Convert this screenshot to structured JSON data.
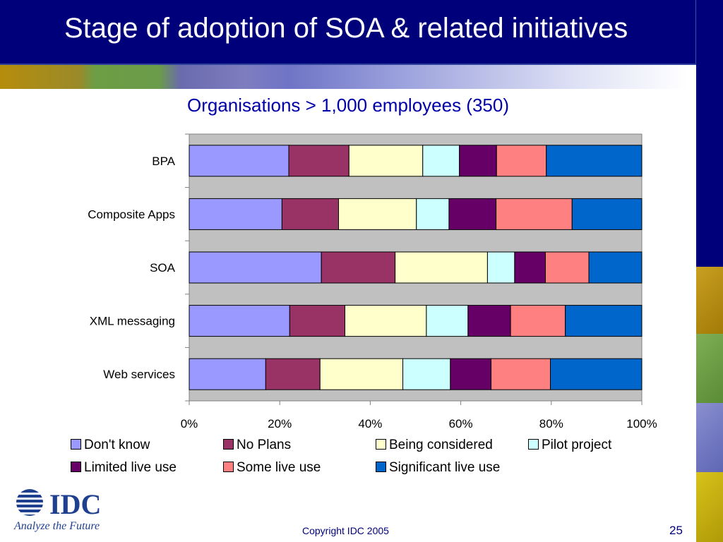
{
  "slide": {
    "title": "Stage of adoption of SOA & related initiatives",
    "copyright": "Copyright IDC 2005",
    "page_number": "25",
    "logo": {
      "brand_text": "IDC",
      "tagline": "Analyze the Future"
    }
  },
  "colors": {
    "header_bg": "#00007a",
    "subtitle": "#0000a8",
    "plot_bg": "#c0c0c0"
  },
  "chart_data": {
    "type": "bar",
    "orientation": "horizontal",
    "stacked": "percent",
    "title": "Organisations > 1,000 employees (350)",
    "categories": [
      "BPA",
      "Composite Apps",
      "SOA",
      "XML messaging",
      "Web services"
    ],
    "xlim": [
      0,
      100
    ],
    "x_ticks": [
      "0%",
      "20%",
      "40%",
      "60%",
      "80%",
      "100%"
    ],
    "grid": false,
    "legend_position": "bottom",
    "series": [
      {
        "name": "Don't know",
        "color": "#9999ff",
        "values": [
          22.0,
          20.5,
          29.2,
          22.2,
          16.9
        ]
      },
      {
        "name": "No Plans",
        "color": "#993366",
        "values": [
          13.3,
          12.5,
          16.3,
          12.2,
          12.0
        ]
      },
      {
        "name": "Being considered",
        "color": "#ffffcc",
        "values": [
          16.3,
          17.2,
          20.4,
          18.0,
          18.3
        ]
      },
      {
        "name": "Pilot project",
        "color": "#ccffff",
        "values": [
          8.1,
          7.2,
          6.0,
          9.2,
          10.5
        ]
      },
      {
        "name": "Limited live use",
        "color": "#660066",
        "values": [
          8.2,
          10.4,
          6.8,
          9.4,
          9.0
        ]
      },
      {
        "name": "Some live use",
        "color": "#ff8080",
        "values": [
          11.0,
          16.8,
          9.6,
          12.1,
          13.1
        ]
      },
      {
        "name": "Significant live use",
        "color": "#0066cc",
        "values": [
          21.1,
          15.4,
          11.7,
          16.9,
          20.2
        ]
      }
    ]
  }
}
